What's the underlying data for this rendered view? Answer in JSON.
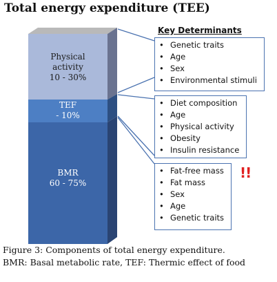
{
  "title": "Total energy expenditure (TEE)",
  "key_determinants_header": "Key Determinants",
  "segments": [
    {
      "name": "Physical activity",
      "line1": "Physical",
      "line2": "activity",
      "range": "10 - 30%"
    },
    {
      "name": "TEF",
      "line1": "TEF",
      "range": "- 10%"
    },
    {
      "name": "BMR",
      "line1": "BMR",
      "range": "60 - 75%"
    }
  ],
  "determinant_boxes": [
    {
      "items": [
        "Genetic traits",
        "Age",
        "Sex",
        "Environmental stimuli"
      ]
    },
    {
      "items": [
        "Diet composition",
        "Age",
        "Physical activity",
        "Obesity",
        "Insulin resistance"
      ]
    },
    {
      "items": [
        "Fat-free mass",
        "Fat mass",
        "Sex",
        "Age",
        "Genetic traits"
      ]
    }
  ],
  "alert_mark": "!!",
  "caption": {
    "line1": "Figure 3: Components of total energy expenditure.",
    "line2": "BMR: Basal metabolic rate, TEF: Thermic effect of food"
  },
  "colors": {
    "physical_front": "#aab9da",
    "physical_side": "#6a7390",
    "tef_front": "#4d7fc4",
    "tef_side": "#2d4f82",
    "bmr_front": "#3c66a8",
    "bmr_side": "#2a4473",
    "top_face": "#b9b9b9",
    "box_border": "#4a72b0",
    "alert": "#e02020"
  }
}
